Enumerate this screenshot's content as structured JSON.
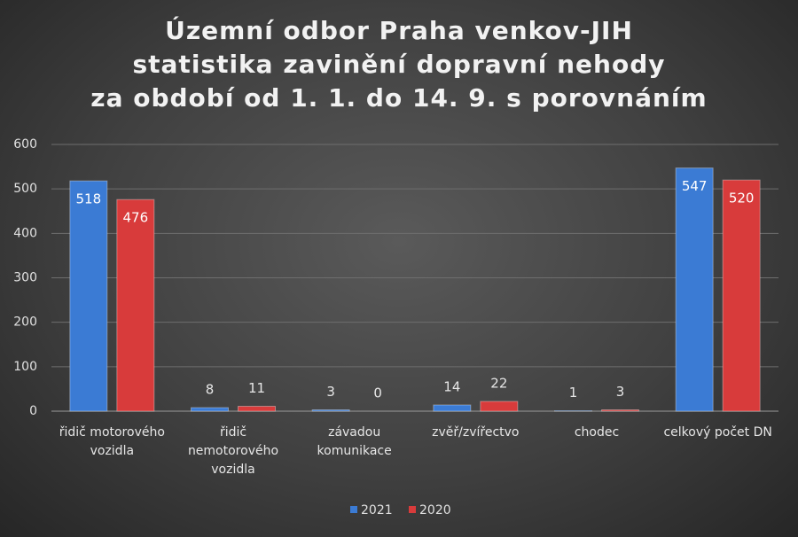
{
  "chart_data": {
    "type": "bar",
    "title": [
      "Územní odbor Praha venkov-JIH",
      "statistika zavinění dopravní nehody",
      "za období od 1. 1. do 14. 9. s porovnáním"
    ],
    "categories": [
      "řidič motorového vozidla",
      "řidič nemotorového vozidla",
      "závadou komunikace",
      "zvěř/zvířectvo",
      "chodec",
      "celkový počet DN"
    ],
    "series": [
      {
        "name": "2021",
        "color": "#3b7bd4",
        "values": [
          518,
          8,
          3,
          14,
          1,
          547
        ]
      },
      {
        "name": "2020",
        "color": "#d83b3b",
        "values": [
          476,
          11,
          0,
          22,
          3,
          520
        ]
      }
    ],
    "ylim": [
      0,
      600
    ],
    "yticks": [
      0,
      100,
      200,
      300,
      400,
      500,
      600
    ],
    "grid": true,
    "legend": "bottom"
  }
}
